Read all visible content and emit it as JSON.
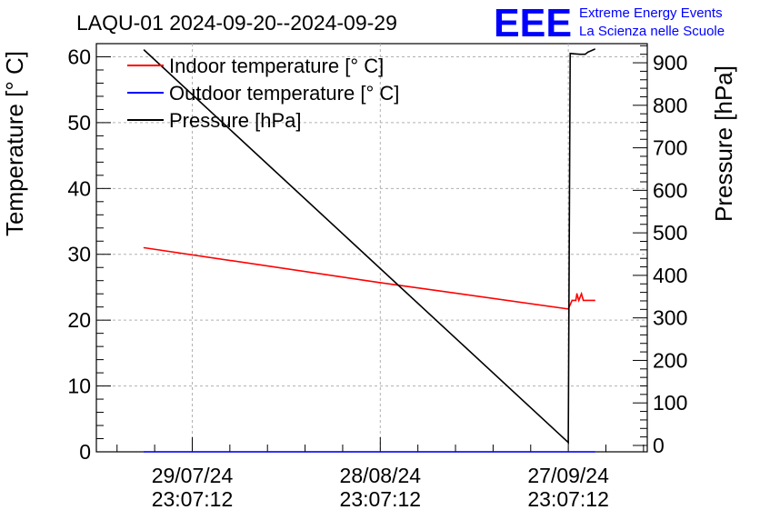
{
  "header": {
    "title": "LAQU-01 2024-09-20--2024-09-29",
    "logo_text": "EEE",
    "logo_line1": "Extreme Energy Events",
    "logo_line2": "La Scienza nelle Scuole"
  },
  "colors": {
    "indoor": "#ff0000",
    "outdoor": "#0000ff",
    "pressure": "#000000",
    "logo": "#0000ff",
    "grid": "#b0b0b0"
  },
  "chart_data": {
    "type": "line",
    "title": "LAQU-01 2024-09-20--2024-09-29",
    "ylabel": "Temperature [° C]",
    "y2label": "Pressure [hPa]",
    "xlabel": "",
    "ylim": [
      0,
      62
    ],
    "y2lim": [
      -15,
      945
    ],
    "xlim": [
      -0.255,
      1.21
    ],
    "grid": true,
    "legend_position": "top-left",
    "yticks": [
      0,
      10,
      20,
      30,
      40,
      50,
      60
    ],
    "y2ticks": [
      0,
      100,
      200,
      300,
      400,
      500,
      600,
      700,
      800,
      900
    ],
    "xticks": [
      {
        "x": 0,
        "date": "29/07/24",
        "time": "23:07:12"
      },
      {
        "x": 0.5,
        "date": "28/08/24",
        "time": "23:07:12"
      },
      {
        "x": 1,
        "date": "27/09/24",
        "time": "23:07:12"
      }
    ],
    "series": [
      {
        "name": "Indoor temperature [° C]",
        "axis": "left",
        "color": "#ff0000",
        "points": [
          [
            -0.128,
            31.0
          ],
          [
            0.5,
            25.7
          ],
          [
            1.0,
            21.7
          ],
          [
            1.01,
            23.0
          ],
          [
            1.02,
            23.0
          ],
          [
            1.023,
            24.0
          ],
          [
            1.028,
            23.0
          ],
          [
            1.035,
            24.0
          ],
          [
            1.04,
            23.0
          ],
          [
            1.07,
            23.0
          ]
        ]
      },
      {
        "name": "Outdoor temperature [° C]",
        "axis": "left",
        "color": "#0000ff",
        "points": [
          [
            -0.128,
            0.0
          ],
          [
            1.07,
            0.0
          ]
        ]
      },
      {
        "name": "Pressure [hPa]",
        "axis": "right",
        "color": "#000000",
        "points": [
          [
            -0.128,
            930
          ],
          [
            1.0,
            7
          ],
          [
            1.005,
            922
          ],
          [
            1.03,
            920
          ],
          [
            1.045,
            920
          ],
          [
            1.052,
            925
          ],
          [
            1.07,
            932
          ]
        ]
      }
    ]
  }
}
